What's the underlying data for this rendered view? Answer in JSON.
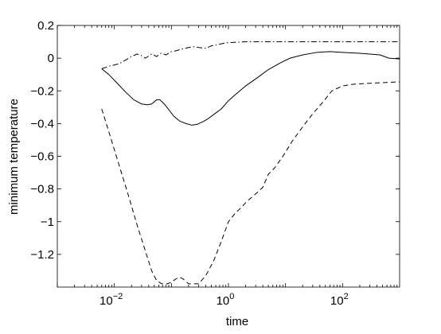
{
  "chart_data": {
    "type": "line",
    "title": "",
    "xlabel": "time",
    "ylabel": "minimum temperature",
    "xscale": "log",
    "xlim": [
      0.001,
      1000
    ],
    "ylim": [
      -1.4,
      0.2
    ],
    "yticks": [
      0.2,
      0,
      -0.2,
      -0.4,
      -0.6,
      -0.8,
      -1,
      -1.2
    ],
    "ytick_labels": [
      "0.2",
      "0",
      "−0.2",
      "−0.4",
      "−0.6",
      "−0.8",
      "−1",
      "−1.2"
    ],
    "xticks": [
      {
        "value": 0.01,
        "base": "10",
        "exponent": "−2"
      },
      {
        "value": 1,
        "base": "10",
        "exponent": "0"
      },
      {
        "value": 100,
        "base": "10",
        "exponent": "2"
      }
    ],
    "grid": false,
    "legend": "none",
    "series": [
      {
        "style": "solid",
        "color": "#000000",
        "points": [
          [
            0.006,
            -0.065
          ],
          [
            0.008,
            -0.1
          ],
          [
            0.011,
            -0.15
          ],
          [
            0.016,
            -0.21
          ],
          [
            0.022,
            -0.255
          ],
          [
            0.03,
            -0.28
          ],
          [
            0.038,
            -0.285
          ],
          [
            0.045,
            -0.28
          ],
          [
            0.055,
            -0.255
          ],
          [
            0.063,
            -0.255
          ],
          [
            0.075,
            -0.28
          ],
          [
            0.09,
            -0.315
          ],
          [
            0.11,
            -0.355
          ],
          [
            0.14,
            -0.385
          ],
          [
            0.18,
            -0.4
          ],
          [
            0.23,
            -0.41
          ],
          [
            0.28,
            -0.405
          ],
          [
            0.35,
            -0.39
          ],
          [
            0.42,
            -0.375
          ],
          [
            0.55,
            -0.345
          ],
          [
            0.75,
            -0.31
          ],
          [
            1.0,
            -0.26
          ],
          [
            1.3,
            -0.225
          ],
          [
            2.0,
            -0.17
          ],
          [
            3.2,
            -0.12
          ],
          [
            5.0,
            -0.07
          ],
          [
            8.0,
            -0.03
          ],
          [
            12,
            0.0
          ],
          [
            20,
            0.02
          ],
          [
            35,
            0.035
          ],
          [
            60,
            0.04
          ],
          [
            100,
            0.035
          ],
          [
            200,
            0.03
          ],
          [
            300,
            0.025
          ],
          [
            450,
            0.02
          ],
          [
            650,
            0.0
          ],
          [
            1000,
            -0.005
          ]
        ]
      },
      {
        "style": "dashed",
        "color": "#000000",
        "points": [
          [
            0.006,
            -0.31
          ],
          [
            0.008,
            -0.45
          ],
          [
            0.012,
            -0.65
          ],
          [
            0.018,
            -0.85
          ],
          [
            0.025,
            -1.02
          ],
          [
            0.035,
            -1.18
          ],
          [
            0.045,
            -1.3
          ],
          [
            0.055,
            -1.36
          ],
          [
            0.068,
            -1.38
          ],
          [
            0.085,
            -1.38
          ],
          [
            0.1,
            -1.37
          ],
          [
            0.12,
            -1.35
          ],
          [
            0.14,
            -1.34
          ],
          [
            0.16,
            -1.35
          ],
          [
            0.2,
            -1.38
          ],
          [
            0.3,
            -1.38
          ],
          [
            0.4,
            -1.33
          ],
          [
            0.55,
            -1.24
          ],
          [
            0.75,
            -1.12
          ],
          [
            1.0,
            -1.0
          ],
          [
            1.3,
            -0.95
          ],
          [
            1.6,
            -0.92
          ],
          [
            2.2,
            -0.87
          ],
          [
            3.0,
            -0.83
          ],
          [
            4.0,
            -0.79
          ],
          [
            5.0,
            -0.71
          ],
          [
            6.5,
            -0.67
          ],
          [
            9.0,
            -0.6
          ],
          [
            13,
            -0.51
          ],
          [
            20,
            -0.42
          ],
          [
            30,
            -0.34
          ],
          [
            45,
            -0.27
          ],
          [
            65,
            -0.2
          ],
          [
            100,
            -0.17
          ],
          [
            150,
            -0.16
          ],
          [
            250,
            -0.155
          ],
          [
            500,
            -0.15
          ],
          [
            1000,
            -0.145
          ]
        ]
      },
      {
        "style": "dashdot",
        "color": "#000000",
        "points": [
          [
            0.006,
            -0.065
          ],
          [
            0.008,
            -0.05
          ],
          [
            0.012,
            -0.035
          ],
          [
            0.016,
            -0.01
          ],
          [
            0.02,
            0.01
          ],
          [
            0.025,
            0.025
          ],
          [
            0.03,
            0.015
          ],
          [
            0.035,
            0.0
          ],
          [
            0.045,
            0.025
          ],
          [
            0.055,
            0.01
          ],
          [
            0.065,
            0.03
          ],
          [
            0.08,
            0.02
          ],
          [
            0.1,
            0.04
          ],
          [
            0.12,
            0.045
          ],
          [
            0.15,
            0.055
          ],
          [
            0.2,
            0.065
          ],
          [
            0.25,
            0.07
          ],
          [
            0.3,
            0.065
          ],
          [
            0.4,
            0.06
          ],
          [
            0.5,
            0.075
          ],
          [
            0.6,
            0.08
          ],
          [
            0.8,
            0.09
          ],
          [
            1.0,
            0.095
          ],
          [
            2.0,
            0.1
          ],
          [
            10,
            0.1
          ],
          [
            100,
            0.1
          ],
          [
            1000,
            0.1
          ]
        ]
      }
    ]
  }
}
